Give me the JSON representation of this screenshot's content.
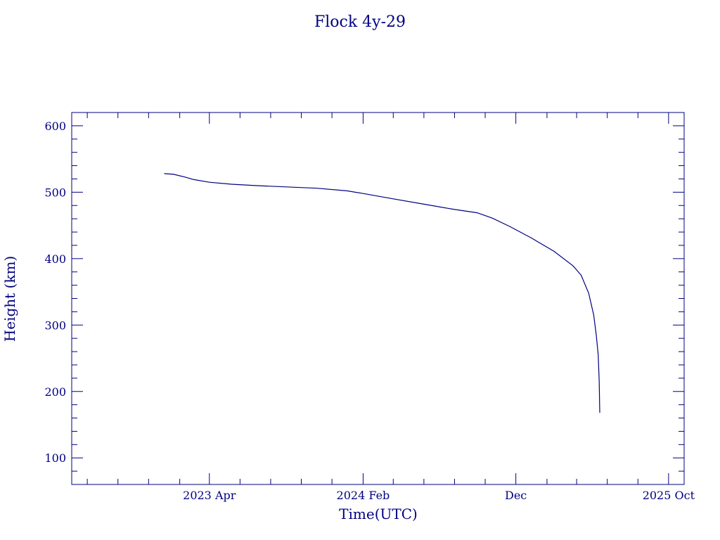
{
  "chart_data": {
    "type": "line",
    "title": "Flock 4y-29",
    "xlabel": "Time(UTC)",
    "ylabel": "Height (km)",
    "xlim": [
      "2022-07-01",
      "2025-11-01"
    ],
    "ylim": [
      60,
      620
    ],
    "x_ticks": [
      {
        "date": "2023-04-01",
        "label": "2023 Apr"
      },
      {
        "date": "2024-02-01",
        "label": "2024 Feb"
      },
      {
        "date": "2024-12-01",
        "label": "Dec"
      },
      {
        "date": "2025-10-01",
        "label": "2025 Oct"
      }
    ],
    "y_ticks": [
      100,
      200,
      300,
      400,
      500,
      600
    ],
    "grid": false,
    "colors": {
      "axes": "#000080",
      "series": "#000080"
    },
    "series": [
      {
        "x": [
          "2023-01-01",
          "2023-01-20",
          "2023-02-10",
          "2023-03-01",
          "2023-04-01",
          "2023-05-15",
          "2023-07-01",
          "2023-09-01",
          "2023-11-01",
          "2024-01-01",
          "2024-02-01",
          "2024-04-01",
          "2024-06-01",
          "2024-08-01",
          "2024-09-15",
          "2024-10-15",
          "2024-11-20",
          "2025-01-01",
          "2025-02-15",
          "2025-03-25",
          "2025-04-10",
          "2025-04-25",
          "2025-05-05",
          "2025-05-10",
          "2025-05-14",
          "2025-05-16",
          "2025-05-17"
        ],
        "y": [
          528,
          527,
          523,
          519,
          515,
          512,
          510,
          508,
          506,
          502,
          498,
          490,
          482,
          474,
          469,
          461,
          448,
          431,
          411,
          389,
          375,
          348,
          315,
          285,
          255,
          215,
          168
        ]
      }
    ]
  }
}
